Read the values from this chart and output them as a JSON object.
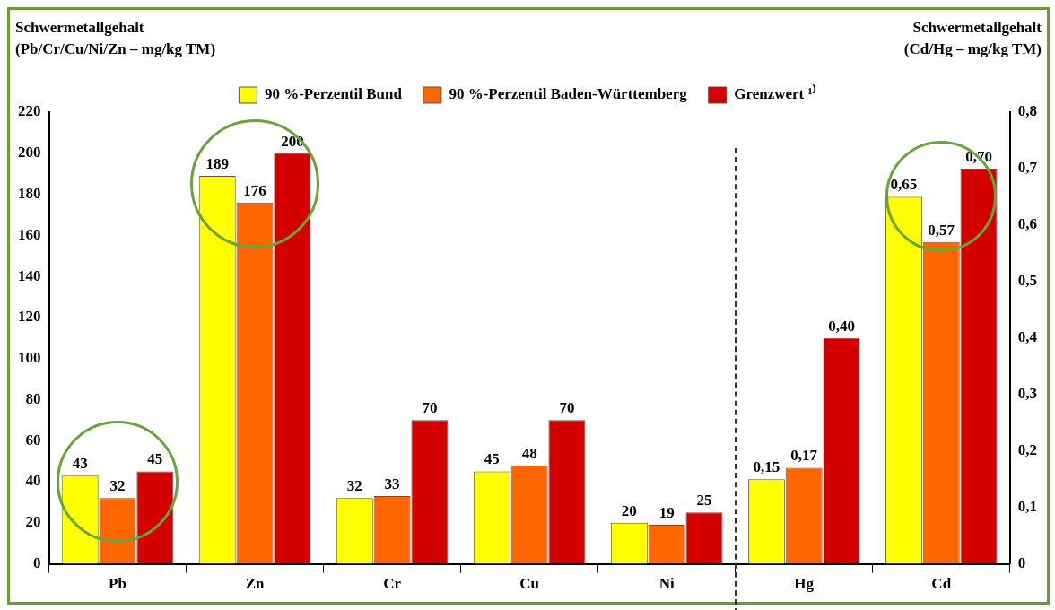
{
  "chart_data": {
    "type": "bar",
    "ylabel": "Schwermetallgehalt\n(Pb/Cr/Cu/Ni/Zn – mg/kg TM)",
    "y2label": "Schwermetallgehalt\n(Cd/Hg – mg/kg TM)",
    "categories": [
      "Pb",
      "Zn",
      "Cr",
      "Cu",
      "Ni",
      "Hg",
      "Cd"
    ],
    "series": [
      {
        "name": "90 %-Perzentil Bund",
        "color": "#ffff00",
        "values": [
          43,
          189,
          32,
          45,
          20,
          null,
          null
        ],
        "value_labels": [
          "43",
          "189",
          "32",
          "45",
          "20",
          null,
          null
        ]
      },
      {
        "name": "90 %-Perzentil Baden-Württemberg",
        "color": "#ff6600",
        "values": [
          32,
          176,
          33,
          48,
          19,
          null,
          null
        ],
        "value_labels": [
          "32",
          "176",
          "33",
          "48",
          "19",
          null,
          null
        ]
      },
      {
        "name": "Grenzwert ¹⁾",
        "color": "#d40000",
        "values": [
          45,
          200,
          70,
          70,
          25,
          null,
          null
        ],
        "value_labels": [
          "45",
          "200",
          "70",
          "70",
          "25",
          null,
          null
        ]
      },
      {
        "color": "#ffff00",
        "axis": "y2",
        "values": [
          null,
          null,
          null,
          null,
          null,
          0.15,
          0.65
        ],
        "value_labels": [
          null,
          null,
          null,
          null,
          null,
          "0,15",
          "0,65"
        ]
      },
      {
        "color": "#ff6600",
        "axis": "y2",
        "values": [
          null,
          null,
          null,
          null,
          null,
          0.17,
          0.57
        ],
        "value_labels": [
          null,
          null,
          null,
          null,
          null,
          "0,17",
          "0,57"
        ]
      },
      {
        "color": "#d40000",
        "axis": "y2",
        "values": [
          null,
          null,
          null,
          null,
          null,
          0.4,
          0.7
        ],
        "value_labels": [
          null,
          null,
          null,
          null,
          null,
          "0,40",
          "0,70"
        ]
      }
    ],
    "ylim": [
      0,
      220
    ],
    "yticks": [
      0,
      20,
      40,
      60,
      80,
      100,
      120,
      140,
      160,
      180,
      200,
      220
    ],
    "y2lim": [
      0,
      0.8
    ],
    "y2ticks": [
      0,
      {
        "value": 0.1,
        "label": "0,1"
      },
      {
        "value": 0.2,
        "label": "0,2"
      },
      {
        "value": 0.3,
        "label": "0,3"
      },
      {
        "value": 0.4,
        "label": "0,4"
      },
      {
        "value": 0.5,
        "label": "0,5"
      },
      {
        "value": 0.6,
        "label": "0,6"
      },
      {
        "value": 0.7,
        "label": "0,7"
      },
      {
        "value": 0.8,
        "label": "0,8"
      }
    ],
    "grid": false,
    "legend": "top"
  }
}
